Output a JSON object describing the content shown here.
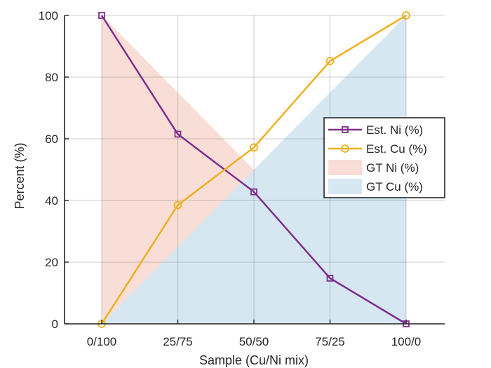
{
  "chart_data": {
    "type": "line",
    "title": "",
    "xlabel": "Sample (Cu/Ni mix)",
    "ylabel": "Percent (%)",
    "categories": [
      "0/100",
      "25/75",
      "50/50",
      "75/25",
      "100/0"
    ],
    "ylim": [
      0,
      100
    ],
    "yticks": [
      "0",
      "20",
      "40",
      "60",
      "80",
      "100"
    ],
    "grid": true,
    "legend_position": "right",
    "series": [
      {
        "name": "Est. Ni (%)",
        "kind": "line",
        "marker": "square",
        "color": "#7E2F8E",
        "values": [
          100,
          61.5,
          42.8,
          14.8,
          0
        ]
      },
      {
        "name": "Est. Cu (%)",
        "kind": "line",
        "marker": "circle",
        "color": "#EDB120",
        "values": [
          0,
          38.5,
          57.2,
          85.2,
          100
        ]
      },
      {
        "name": "GT Ni (%)",
        "kind": "area",
        "color": "#F8DED6",
        "values": [
          100,
          75,
          50,
          25,
          0
        ]
      },
      {
        "name": "GT Cu (%)",
        "kind": "area",
        "color": "#D6E7F2",
        "values": [
          0,
          25,
          50,
          75,
          100
        ]
      }
    ]
  }
}
